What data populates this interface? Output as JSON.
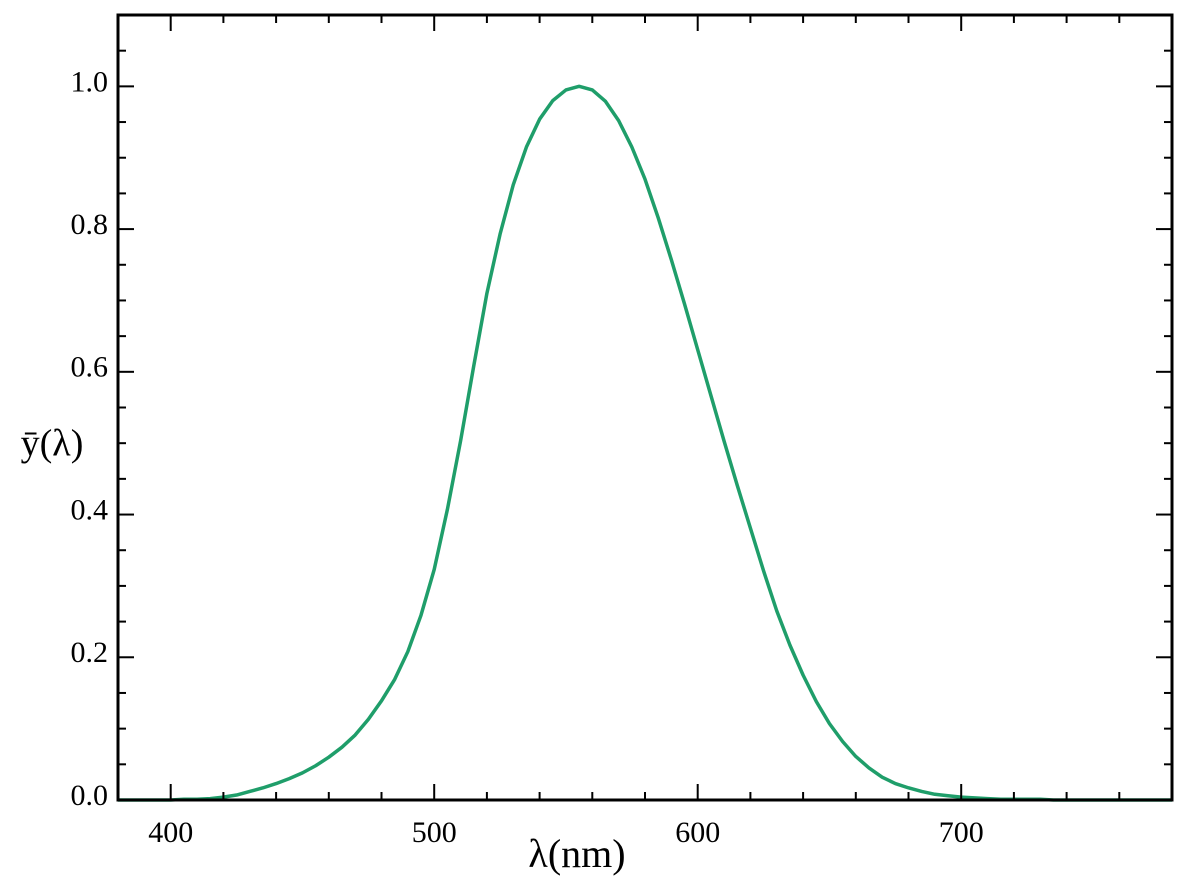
{
  "chart_data": {
    "type": "line",
    "x_label": "λ(nm)",
    "y_label": "ȳ(λ)",
    "x": [
      380,
      385,
      390,
      395,
      400,
      405,
      410,
      415,
      420,
      425,
      430,
      435,
      440,
      445,
      450,
      455,
      460,
      465,
      470,
      475,
      480,
      485,
      490,
      495,
      500,
      505,
      510,
      515,
      520,
      525,
      530,
      535,
      540,
      545,
      550,
      555,
      560,
      565,
      570,
      575,
      580,
      585,
      590,
      595,
      600,
      605,
      610,
      615,
      620,
      625,
      630,
      635,
      640,
      645,
      650,
      655,
      660,
      665,
      670,
      675,
      680,
      685,
      690,
      695,
      700,
      705,
      710,
      715,
      720,
      725,
      730,
      735,
      740,
      745,
      750,
      755,
      760,
      765,
      770,
      775,
      780
    ],
    "series": [
      {
        "color": "#1f9e6a",
        "values": [
          0.0,
          0.0,
          0.0,
          0.0,
          0.0,
          0.001,
          0.001,
          0.002,
          0.004,
          0.007,
          0.012,
          0.017,
          0.023,
          0.03,
          0.038,
          0.048,
          0.06,
          0.074,
          0.091,
          0.113,
          0.139,
          0.169,
          0.208,
          0.259,
          0.323,
          0.407,
          0.503,
          0.608,
          0.71,
          0.793,
          0.862,
          0.915,
          0.954,
          0.98,
          0.995,
          1.0,
          0.995,
          0.979,
          0.952,
          0.915,
          0.87,
          0.816,
          0.757,
          0.695,
          0.631,
          0.567,
          0.503,
          0.441,
          0.381,
          0.321,
          0.265,
          0.217,
          0.175,
          0.138,
          0.107,
          0.082,
          0.061,
          0.045,
          0.032,
          0.023,
          0.017,
          0.012,
          0.008,
          0.006,
          0.004,
          0.003,
          0.002,
          0.001,
          0.001,
          0.001,
          0.001,
          0.0,
          0.0,
          0.0,
          0.0,
          0.0,
          0.0,
          0.0,
          0.0,
          0.0,
          0.0
        ]
      }
    ],
    "xlim": [
      380,
      780
    ],
    "ylim": [
      0,
      1.1
    ],
    "xticks": [
      400,
      500,
      600,
      700
    ],
    "yticks": [
      {
        "value": 0,
        "label": "0.0"
      },
      {
        "value": 0.2,
        "label": "0.2"
      },
      {
        "value": 0.4,
        "label": "0.4"
      },
      {
        "value": 0.6,
        "label": "0.6"
      },
      {
        "value": 0.8,
        "label": "0.8"
      },
      {
        "value": 1,
        "label": "1.0"
      }
    ],
    "xminorticks": [
      380,
      420,
      440,
      460,
      480,
      520,
      540,
      560,
      580,
      620,
      640,
      660,
      680,
      720,
      740,
      760,
      780
    ],
    "yminorticks": [
      0.05,
      0.1,
      0.15,
      0.25,
      0.3,
      0.35,
      0.45,
      0.5,
      0.55,
      0.65,
      0.7,
      0.75,
      0.85,
      0.9,
      0.95,
      1.05
    ],
    "grid": false
  }
}
